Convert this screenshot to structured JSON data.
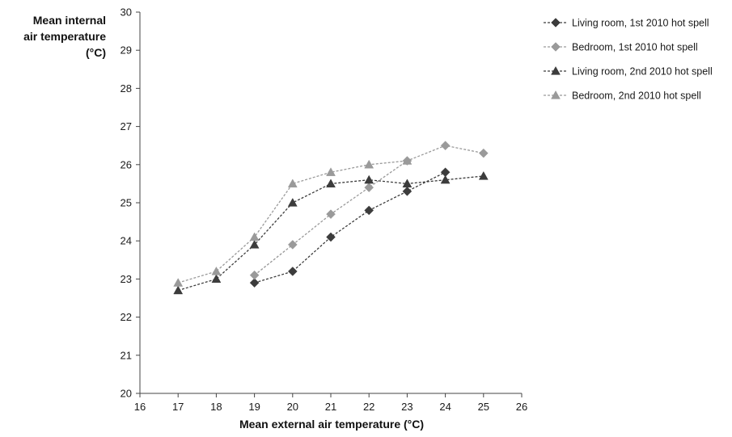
{
  "chart_data": {
    "type": "line",
    "xlabel": "Mean external air temperature (°C)",
    "ylabel_lines": [
      "Mean internal",
      "air temperature",
      "(°C)"
    ],
    "xlim": [
      16,
      26
    ],
    "ylim": [
      20,
      30
    ],
    "xticks": [
      "16",
      "17",
      "18",
      "19",
      "20",
      "21",
      "22",
      "23",
      "24",
      "25",
      "26"
    ],
    "yticks": [
      "20",
      "21",
      "22",
      "23",
      "24",
      "25",
      "26",
      "27",
      "28",
      "29",
      "30"
    ],
    "grid": false,
    "legend_position": "top-right",
    "series": [
      {
        "name": "Living room, 1st 2010 hot spell",
        "marker": "diamond",
        "color": "#3c3c3c",
        "x": [
          19,
          20,
          21,
          22,
          23,
          24
        ],
        "y": [
          22.9,
          23.2,
          24.1,
          24.8,
          25.3,
          25.8
        ]
      },
      {
        "name": "Bedroom, 1st 2010 hot spell",
        "marker": "diamond",
        "color": "#9a9a9a",
        "x": [
          19,
          20,
          21,
          22,
          23,
          24,
          25
        ],
        "y": [
          23.1,
          23.9,
          24.7,
          25.4,
          26.1,
          26.5,
          26.3
        ]
      },
      {
        "name": "Living room, 2nd 2010 hot spell",
        "marker": "triangle",
        "color": "#3c3c3c",
        "x": [
          17,
          18,
          19,
          20,
          21,
          22,
          23,
          24,
          25
        ],
        "y": [
          22.7,
          23.0,
          23.9,
          25.0,
          25.5,
          25.6,
          25.5,
          25.6,
          25.7
        ]
      },
      {
        "name": "Bedroom, 2nd 2010 hot spell",
        "marker": "triangle",
        "color": "#9a9a9a",
        "x": [
          17,
          18,
          19,
          20,
          21,
          22,
          23
        ],
        "y": [
          22.9,
          23.2,
          24.1,
          25.5,
          25.8,
          26.0,
          26.1
        ]
      }
    ]
  }
}
